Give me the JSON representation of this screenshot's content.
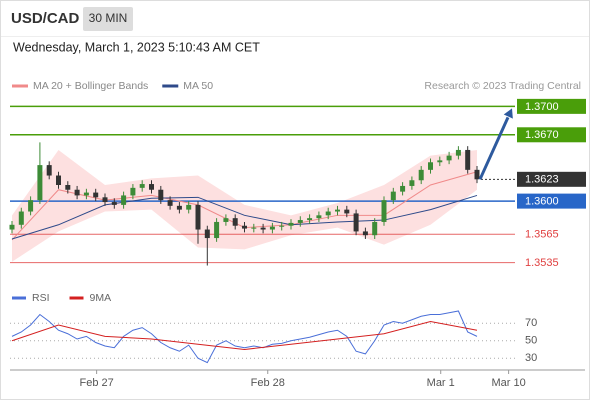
{
  "chart_data": {
    "type": "candlestick",
    "title": "USD/CAD",
    "interval": "30 MIN",
    "timestamp": "Wednesday, March 1, 2023 5:10:43 AM CET",
    "source": "Research © 2023 Trading Central",
    "up_color": "#3d8b37",
    "down_color": "#333333",
    "open": [
      1.357,
      1.3575,
      1.3589,
      1.3601,
      1.3638,
      1.3627,
      1.3617,
      1.3612,
      1.3606,
      1.3609,
      1.3604,
      1.3599,
      1.3596,
      1.3606,
      1.3614,
      1.3618,
      1.3612,
      1.3601,
      1.3595,
      1.3591,
      1.3596,
      1.357,
      1.3561,
      1.3578,
      1.3582,
      1.3574,
      1.3571,
      1.3572,
      1.357,
      1.3573,
      1.3574,
      1.3577,
      1.358,
      1.3582,
      1.3585,
      1.3589,
      1.3591,
      1.3587,
      1.3568,
      1.3564,
      1.3578,
      1.3601,
      1.361,
      1.3616,
      1.3622,
      1.3633,
      1.3641,
      1.3643,
      1.3648,
      1.3654,
      1.3633
    ],
    "high": [
      1.3579,
      1.3593,
      1.3605,
      1.3662,
      1.3642,
      1.3631,
      1.3621,
      1.3616,
      1.3613,
      1.3613,
      1.3608,
      1.3603,
      1.361,
      1.3618,
      1.3622,
      1.3622,
      1.3616,
      1.3605,
      1.3599,
      1.36,
      1.36,
      1.3574,
      1.3582,
      1.3586,
      1.3586,
      1.3578,
      1.3576,
      1.3576,
      1.3577,
      1.3578,
      1.3581,
      1.3584,
      1.3586,
      1.3589,
      1.3593,
      1.3595,
      1.3595,
      1.3591,
      1.3572,
      1.3582,
      1.3605,
      1.3614,
      1.362,
      1.3626,
      1.3637,
      1.3645,
      1.3647,
      1.3652,
      1.3658,
      1.3658,
      1.3637
    ],
    "low": [
      1.3566,
      1.3571,
      1.3585,
      1.3597,
      1.3623,
      1.3613,
      1.3608,
      1.3602,
      1.3602,
      1.36,
      1.3595,
      1.3592,
      1.3592,
      1.3602,
      1.361,
      1.3608,
      1.3597,
      1.3591,
      1.3587,
      1.3587,
      1.3555,
      1.3532,
      1.3557,
      1.3574,
      1.357,
      1.3567,
      1.3567,
      1.3566,
      1.3566,
      1.3569,
      1.357,
      1.3573,
      1.3576,
      1.3578,
      1.3581,
      1.3585,
      1.3583,
      1.3564,
      1.356,
      1.356,
      1.3574,
      1.3597,
      1.3606,
      1.3612,
      1.3618,
      1.3629,
      1.3637,
      1.3639,
      1.3644,
      1.3629,
      1.3619
    ],
    "close": [
      1.3575,
      1.3589,
      1.3601,
      1.3638,
      1.3627,
      1.3617,
      1.3612,
      1.3606,
      1.3609,
      1.3604,
      1.3599,
      1.3596,
      1.3606,
      1.3614,
      1.3618,
      1.3612,
      1.3601,
      1.3595,
      1.3591,
      1.3596,
      1.357,
      1.3561,
      1.3578,
      1.3582,
      1.3574,
      1.3571,
      1.3572,
      1.357,
      1.3573,
      1.3574,
      1.3577,
      1.358,
      1.3582,
      1.3585,
      1.3589,
      1.3591,
      1.3587,
      1.3568,
      1.3564,
      1.3578,
      1.3601,
      1.361,
      1.3616,
      1.3622,
      1.3633,
      1.3641,
      1.3643,
      1.3648,
      1.3654,
      1.3633,
      1.3623
    ],
    "indicator_x": [
      0,
      5,
      10,
      15,
      20,
      25,
      30,
      35,
      40,
      45,
      50
    ],
    "overlays": [
      {
        "name": "MA 20 + Bollinger Bands",
        "color": "#f08a8a",
        "band_color": "#fde0e0",
        "values": [
          1.3559,
          1.3612,
          1.3601,
          1.3606,
          1.3596,
          1.3572,
          1.3575,
          1.3585,
          1.3585,
          1.3617,
          1.3631
        ],
        "upper": [
          1.3585,
          1.3654,
          1.3617,
          1.3624,
          1.3627,
          1.3596,
          1.3585,
          1.3598,
          1.3617,
          1.3648,
          1.3654
        ],
        "lower": [
          1.3536,
          1.3568,
          1.3589,
          1.3591,
          1.3551,
          1.3549,
          1.3564,
          1.3572,
          1.3554,
          1.3575,
          1.3612
        ]
      },
      {
        "name": "MA 50",
        "color": "#2e4a8a",
        "values": [
          1.356,
          1.3575,
          1.3596,
          1.3603,
          1.3604,
          1.3585,
          1.3575,
          1.3578,
          1.358,
          1.3591,
          1.3606
        ]
      }
    ],
    "ylim": [
      1.3522,
      1.3712
    ],
    "levels": [
      {
        "value": 1.37,
        "label": "1.3700",
        "color": "#4a9e0a",
        "box": true,
        "style": "solid"
      },
      {
        "value": 1.367,
        "label": "1.3670",
        "color": "#4a9e0a",
        "box": true,
        "style": "solid"
      },
      {
        "value": 1.3623,
        "label": "1.3623",
        "color": "#333333",
        "box": true,
        "style": "dotted"
      },
      {
        "value": 1.36,
        "label": "1.3600",
        "color": "#2866c8",
        "box": true,
        "style": "solid"
      },
      {
        "value": 1.3565,
        "label": "1.3565",
        "color": "#e04040",
        "box": false,
        "style": "solid"
      },
      {
        "value": 1.3535,
        "label": "1.3535",
        "color": "#e04040",
        "box": false,
        "style": "solid"
      }
    ],
    "xticks": [
      {
        "value": 9.1,
        "label": "Feb 27"
      },
      {
        "value": 27.5,
        "label": "Feb 28"
      },
      {
        "value": 46.1,
        "label": "Mar 1"
      },
      {
        "value": 53.4,
        "label": "Mar 10"
      }
    ],
    "rsi": {
      "ylim": [
        20,
        108
      ],
      "yticks": [
        70,
        50,
        30
      ],
      "series": [
        {
          "name": "RSI",
          "color": "#4a6fd8",
          "values": [
            55,
            60,
            68,
            80,
            72,
            62,
            58,
            52,
            55,
            48,
            44,
            42,
            55,
            62,
            65,
            58,
            48,
            42,
            38,
            45,
            30,
            25,
            45,
            50,
            44,
            42,
            44,
            42,
            46,
            47,
            50,
            52,
            54,
            57,
            60,
            62,
            55,
            38,
            35,
            50,
            68,
            72,
            70,
            74,
            78,
            80,
            80,
            82,
            84,
            60,
            55
          ]
        },
        {
          "name": "9MA",
          "color": "#d42020",
          "values": [
            50,
            68,
            55,
            52,
            46,
            40,
            46,
            52,
            58,
            72,
            62
          ]
        }
      ]
    }
  }
}
